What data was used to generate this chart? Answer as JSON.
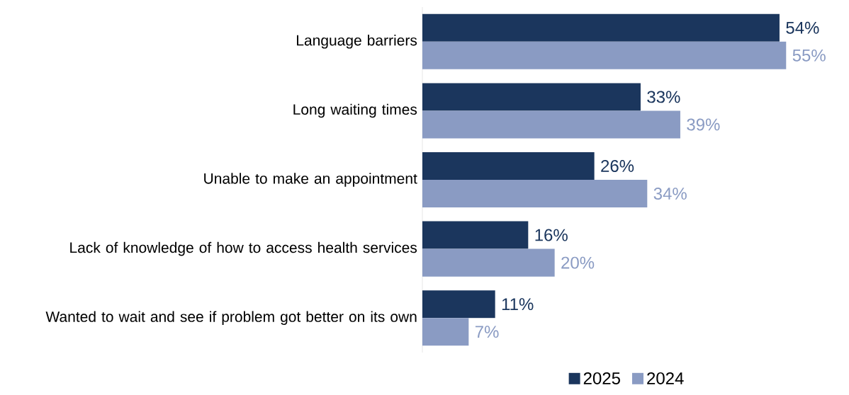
{
  "chart_data": {
    "type": "bar",
    "orientation": "horizontal",
    "categories": [
      "Language barriers",
      "Long waiting times",
      "Unable to make an appointment",
      "Lack of knowledge of how to access health services",
      "Wanted to wait and see if problem got better on its own"
    ],
    "series": [
      {
        "name": "2025",
        "color": "#1b365d",
        "values": [
          54,
          33,
          26,
          16,
          11
        ],
        "value_labels": [
          "54%",
          "33%",
          "26%",
          "16%",
          "11%"
        ]
      },
      {
        "name": "2024",
        "color": "#8a9bc3",
        "values": [
          55,
          39,
          34,
          20,
          7
        ],
        "value_labels": [
          "55%",
          "39%",
          "34%",
          "20%",
          "7%"
        ]
      }
    ],
    "legend": "bottom"
  }
}
